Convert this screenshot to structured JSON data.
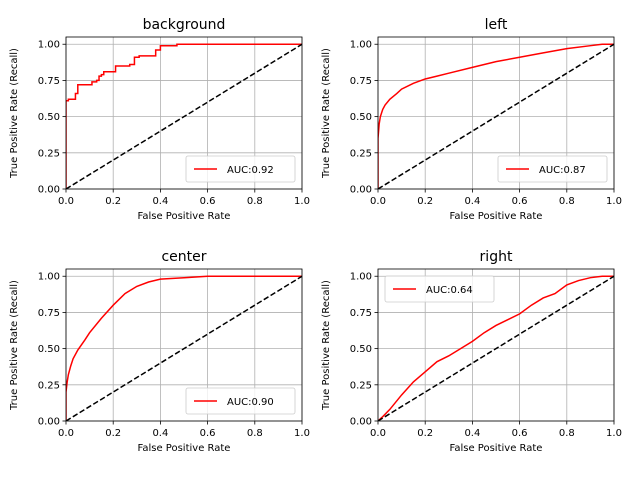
{
  "chart_data": [
    {
      "type": "line",
      "title": "background",
      "xlabel": "False Positive Rate",
      "ylabel": "True Positive Rate (Recall)",
      "xlim": [
        0,
        1.0
      ],
      "ylim": [
        0,
        1.05
      ],
      "xticks": [
        "0.0",
        "0.2",
        "0.4",
        "0.6",
        "0.8",
        "1.0"
      ],
      "yticks": [
        "0.00",
        "0.25",
        "0.50",
        "0.75",
        "1.00"
      ],
      "grid": true,
      "legend_position": "lower-right",
      "series": [
        {
          "name": "AUC:0.92",
          "color": "#ff0000",
          "style": "solid",
          "x": [
            0,
            0,
            0.01,
            0.01,
            0.04,
            0.04,
            0.05,
            0.05,
            0.11,
            0.11,
            0.13,
            0.13,
            0.14,
            0.14,
            0.15,
            0.15,
            0.16,
            0.16,
            0.21,
            0.21,
            0.27,
            0.27,
            0.29,
            0.29,
            0.31,
            0.31,
            0.38,
            0.38,
            0.4,
            0.4,
            0.47,
            0.47,
            1.0
          ],
          "y": [
            0,
            0.61,
            0.61,
            0.62,
            0.62,
            0.66,
            0.66,
            0.72,
            0.72,
            0.74,
            0.74,
            0.75,
            0.75,
            0.78,
            0.78,
            0.79,
            0.79,
            0.81,
            0.81,
            0.85,
            0.85,
            0.86,
            0.86,
            0.91,
            0.91,
            0.92,
            0.92,
            0.96,
            0.96,
            0.99,
            0.99,
            1.0,
            1.0
          ]
        },
        {
          "name": "",
          "color": "#000000",
          "style": "dashed",
          "x": [
            0,
            1.0
          ],
          "y": [
            0,
            1.0
          ]
        }
      ]
    },
    {
      "type": "line",
      "title": "left",
      "xlabel": "False Positive Rate",
      "ylabel": "True Positive Rate (Recall)",
      "xlim": [
        0,
        1.0
      ],
      "ylim": [
        0,
        1.05
      ],
      "xticks": [
        "0.0",
        "0.2",
        "0.4",
        "0.6",
        "0.8",
        "1.0"
      ],
      "yticks": [
        "0.00",
        "0.25",
        "0.50",
        "0.75",
        "1.00"
      ],
      "grid": true,
      "legend_position": "lower-right",
      "series": [
        {
          "name": "AUC:0.87",
          "color": "#ff0000",
          "style": "solid",
          "x": [
            0,
            0,
            0.005,
            0.01,
            0.02,
            0.03,
            0.05,
            0.08,
            0.1,
            0.15,
            0.2,
            0.25,
            0.3,
            0.4,
            0.5,
            0.6,
            0.7,
            0.8,
            0.9,
            0.95,
            1.0
          ],
          "y": [
            0,
            0.35,
            0.45,
            0.5,
            0.55,
            0.58,
            0.62,
            0.66,
            0.69,
            0.73,
            0.76,
            0.78,
            0.8,
            0.84,
            0.88,
            0.91,
            0.94,
            0.97,
            0.99,
            1.0,
            1.0
          ]
        },
        {
          "name": "",
          "color": "#000000",
          "style": "dashed",
          "x": [
            0,
            1.0
          ],
          "y": [
            0,
            1.0
          ]
        }
      ]
    },
    {
      "type": "line",
      "title": "center",
      "xlabel": "False Positive Rate",
      "ylabel": "True Positive Rate (Recall)",
      "xlim": [
        0,
        1.0
      ],
      "ylim": [
        0,
        1.05
      ],
      "xticks": [
        "0.0",
        "0.2",
        "0.4",
        "0.6",
        "0.8",
        "1.0"
      ],
      "yticks": [
        "0.00",
        "0.25",
        "0.50",
        "0.75",
        "1.00"
      ],
      "grid": true,
      "legend_position": "lower-right",
      "series": [
        {
          "name": "AUC:0.90",
          "color": "#ff0000",
          "style": "solid",
          "x": [
            0,
            0,
            0.005,
            0.01,
            0.02,
            0.03,
            0.05,
            0.08,
            0.1,
            0.15,
            0.2,
            0.25,
            0.3,
            0.35,
            0.4,
            0.5,
            0.6,
            0.7,
            0.8,
            0.9,
            1.0
          ],
          "y": [
            0,
            0.2,
            0.27,
            0.32,
            0.38,
            0.43,
            0.49,
            0.56,
            0.61,
            0.71,
            0.8,
            0.88,
            0.93,
            0.96,
            0.98,
            0.99,
            1.0,
            1.0,
            1.0,
            1.0,
            1.0
          ]
        },
        {
          "name": "",
          "color": "#000000",
          "style": "dashed",
          "x": [
            0,
            1.0
          ],
          "y": [
            0,
            1.0
          ]
        }
      ]
    },
    {
      "type": "line",
      "title": "right",
      "xlabel": "False Positive Rate",
      "ylabel": "True Positive Rate (Recall)",
      "xlim": [
        0,
        1.0
      ],
      "ylim": [
        0,
        1.05
      ],
      "xticks": [
        "0.0",
        "0.2",
        "0.4",
        "0.6",
        "0.8",
        "1.0"
      ],
      "yticks": [
        "0.00",
        "0.25",
        "0.50",
        "0.75",
        "1.00"
      ],
      "grid": true,
      "legend_position": "upper-left",
      "series": [
        {
          "name": "AUC:0.64",
          "color": "#ff0000",
          "style": "solid",
          "x": [
            0,
            0.02,
            0.05,
            0.1,
            0.15,
            0.2,
            0.25,
            0.3,
            0.35,
            0.4,
            0.45,
            0.5,
            0.55,
            0.6,
            0.65,
            0.7,
            0.75,
            0.8,
            0.85,
            0.9,
            0.95,
            1.0
          ],
          "y": [
            0,
            0.03,
            0.08,
            0.18,
            0.27,
            0.34,
            0.41,
            0.45,
            0.5,
            0.55,
            0.61,
            0.66,
            0.7,
            0.74,
            0.8,
            0.85,
            0.88,
            0.94,
            0.97,
            0.99,
            1.0,
            1.0
          ]
        },
        {
          "name": "",
          "color": "#000000",
          "style": "dashed",
          "x": [
            0,
            1.0
          ],
          "y": [
            0,
            1.0
          ]
        }
      ]
    }
  ]
}
